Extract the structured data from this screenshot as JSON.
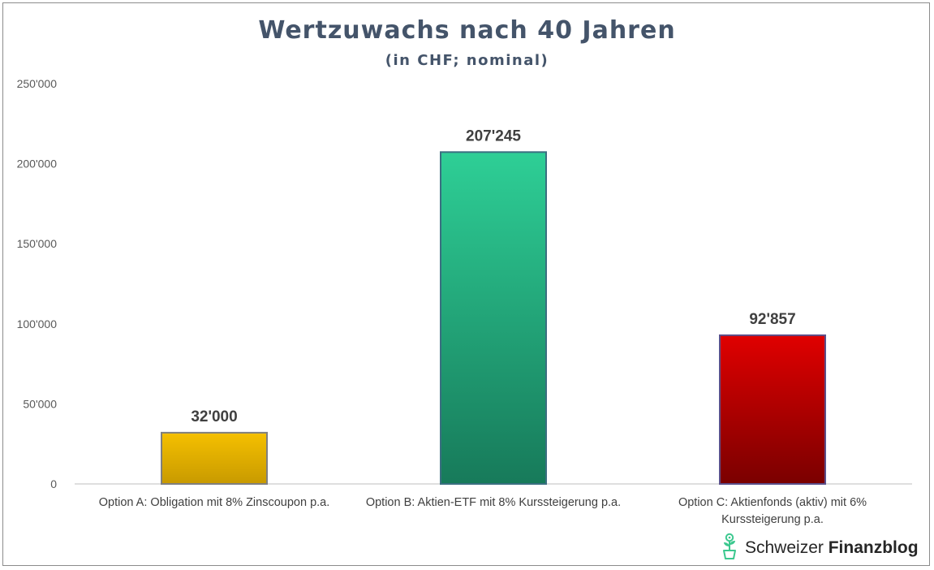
{
  "chart_data": {
    "type": "bar",
    "title": "Wertzuwachs nach 40 Jahren",
    "subtitle": "(in CHF; nominal)",
    "categories": [
      "Option A: Obligation mit 8% Zinscoupon p.a.",
      "Option B: Aktien-ETF mit 8% Kurssteigerung p.a.",
      "Option C: Aktienfonds (aktiv) mit 6% Kurssteigerung p.a."
    ],
    "category_lines": [
      [
        "Option A: Obligation mit 8% Zinscoupon p.a."
      ],
      [
        "Option B: Aktien-ETF mit 8% Kurssteigerung p.a."
      ],
      [
        "Option C: Aktienfonds (aktiv) mit 6%",
        "Kurssteigerung p.a."
      ]
    ],
    "values": [
      32000,
      207245,
      92857
    ],
    "value_labels": [
      "32'000",
      "207'245",
      "92'857"
    ],
    "colors": [
      {
        "top": "#f5c000",
        "bottom": "#c89a00",
        "border": "#7f7f7f"
      },
      {
        "top": "#2ecf96",
        "bottom": "#177a5a",
        "border": "#3a6f80"
      },
      {
        "top": "#e00000",
        "bottom": "#7a0000",
        "border": "#5b4f8a"
      }
    ],
    "ylim": [
      0,
      250000
    ],
    "yticks": [
      0,
      50000,
      100000,
      150000,
      200000,
      250000
    ],
    "ytick_labels": [
      "0",
      "50'000",
      "100'000",
      "150'000",
      "200'000",
      "250'000"
    ],
    "xlabel": "",
    "ylabel": "",
    "grid": false
  },
  "logo": {
    "word_regular": "Schweizer",
    "word_bold": "Finanzblog",
    "icon": "plant-pot-icon",
    "icon_color": "#3cc88f"
  }
}
